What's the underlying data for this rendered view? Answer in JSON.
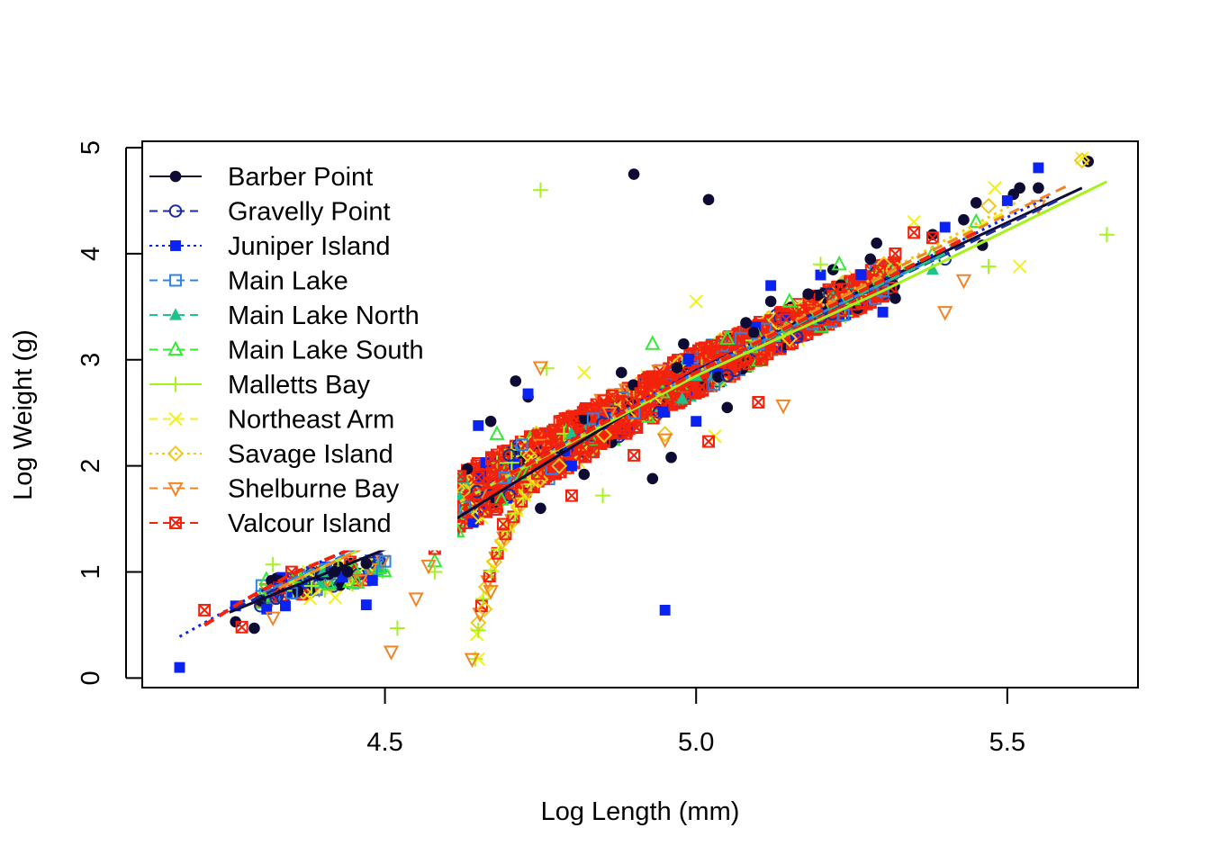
{
  "chart_data": {
    "type": "scatter",
    "title": "",
    "xlabel": "Log Length (mm)",
    "ylabel": "Log Weight (g)",
    "xlim": [
      4.11,
      5.71
    ],
    "ylim": [
      -0.09,
      5.06
    ],
    "x_ticks": [
      4.5,
      5.0,
      5.5
    ],
    "x_tick_labels": [
      "4.5",
      "5.0",
      "5.5"
    ],
    "y_ticks": [
      0,
      1,
      2,
      3,
      4,
      5
    ],
    "y_tick_labels": [
      "0",
      "1",
      "2",
      "3",
      "4",
      "5"
    ],
    "grid": false,
    "legend_position": "top-left",
    "series": [
      {
        "name": "Barber Point",
        "color": "#0d0b33",
        "marker": "filled-circle",
        "line_style": "solid",
        "fit": [
          [
            4.25,
            0.62
          ],
          [
            4.6,
            1.45
          ],
          [
            5.0,
            2.9
          ],
          [
            5.3,
            3.75
          ],
          [
            5.62,
            4.62
          ]
        ],
        "points": [
          [
            4.26,
            0.53
          ],
          [
            4.29,
            0.47
          ],
          [
            4.3,
            0.73
          ],
          [
            4.33,
            0.92
          ],
          [
            4.36,
            0.82
          ],
          [
            4.41,
            0.98
          ],
          [
            4.47,
            1.08
          ],
          [
            4.67,
            2.42
          ],
          [
            4.71,
            2.8
          ],
          [
            4.73,
            2.65
          ],
          [
            4.75,
            1.6
          ],
          [
            4.82,
            1.92
          ],
          [
            4.88,
            2.88
          ],
          [
            4.9,
            4.75
          ],
          [
            4.93,
            1.88
          ],
          [
            4.96,
            2.08
          ],
          [
            4.98,
            3.15
          ],
          [
            5.02,
            4.51
          ],
          [
            5.05,
            2.55
          ],
          [
            5.08,
            3.35
          ],
          [
            5.12,
            3.55
          ],
          [
            5.18,
            3.62
          ],
          [
            5.22,
            3.85
          ],
          [
            5.28,
            3.95
          ],
          [
            5.29,
            4.1
          ],
          [
            5.32,
            3.58
          ],
          [
            5.38,
            4.18
          ],
          [
            5.43,
            4.32
          ],
          [
            5.45,
            4.48
          ],
          [
            5.46,
            4.08
          ],
          [
            5.51,
            4.56
          ],
          [
            5.52,
            4.62
          ],
          [
            5.55,
            4.62
          ],
          [
            5.63,
            4.87
          ]
        ]
      },
      {
        "name": "Gravelly Point",
        "color": "#1a2d9b",
        "marker": "open-circle",
        "line_style": "dashed",
        "fit": [
          [
            4.26,
            0.66
          ],
          [
            4.6,
            1.6
          ],
          [
            5.0,
            2.88
          ],
          [
            5.35,
            3.85
          ],
          [
            5.58,
            4.5
          ]
        ],
        "points": [
          [
            4.3,
            0.68
          ],
          [
            4.4,
            1.0
          ],
          [
            4.7,
            2.1
          ],
          [
            4.85,
            2.4
          ],
          [
            5.05,
            2.85
          ],
          [
            5.2,
            3.4
          ],
          [
            5.4,
            3.95
          ]
        ]
      },
      {
        "name": "Juniper Island",
        "color": "#0b23f0",
        "marker": "filled-square",
        "line_style": "dotted",
        "fit": [
          [
            4.17,
            0.39
          ],
          [
            4.35,
            0.98
          ],
          [
            4.6,
            1.6
          ],
          [
            5.0,
            2.9
          ],
          [
            5.35,
            3.9
          ],
          [
            5.57,
            4.55
          ]
        ],
        "points": [
          [
            4.17,
            0.1
          ],
          [
            4.26,
            0.68
          ],
          [
            4.31,
            0.65
          ],
          [
            4.34,
            0.68
          ],
          [
            4.47,
            0.69
          ],
          [
            4.48,
            0.92
          ],
          [
            4.65,
            2.38
          ],
          [
            4.73,
            2.68
          ],
          [
            4.8,
            2.0
          ],
          [
            4.95,
            0.64
          ],
          [
            5.0,
            2.42
          ],
          [
            5.12,
            3.7
          ],
          [
            5.2,
            3.8
          ],
          [
            5.3,
            3.45
          ],
          [
            5.4,
            4.25
          ],
          [
            5.5,
            4.5
          ],
          [
            5.55,
            4.81
          ]
        ]
      },
      {
        "name": "Main Lake",
        "color": "#2d84e8",
        "marker": "open-square",
        "line_style": "dashed",
        "fit": [
          [
            4.32,
            0.85
          ],
          [
            4.6,
            1.6
          ],
          [
            5.0,
            2.88
          ],
          [
            5.4,
            4.0
          ]
        ],
        "points": [
          [
            4.35,
            0.8
          ],
          [
            4.5,
            1.1
          ],
          [
            4.72,
            2.2
          ],
          [
            4.9,
            2.5
          ],
          [
            5.1,
            3.15
          ],
          [
            5.3,
            3.65
          ]
        ]
      },
      {
        "name": "Main Lake North",
        "color": "#1ec28a",
        "marker": "filled-triangle",
        "line_style": "dashed",
        "fit": [
          [
            4.33,
            0.85
          ],
          [
            4.6,
            1.6
          ],
          [
            5.0,
            2.88
          ],
          [
            5.4,
            4.0
          ]
        ],
        "points": [
          [
            4.4,
            1.0
          ],
          [
            4.62,
            1.7
          ],
          [
            4.8,
            2.3
          ],
          [
            5.0,
            2.85
          ],
          [
            5.22,
            3.6
          ],
          [
            5.38,
            3.85
          ]
        ]
      },
      {
        "name": "Main Lake South",
        "color": "#33ea33",
        "marker": "open-triangle",
        "line_style": "dashed",
        "fit": [
          [
            4.33,
            0.85
          ],
          [
            4.6,
            1.6
          ],
          [
            5.0,
            2.88
          ],
          [
            5.45,
            4.2
          ]
        ],
        "points": [
          [
            4.36,
            0.95
          ],
          [
            4.58,
            1.1
          ],
          [
            4.68,
            2.3
          ],
          [
            4.93,
            3.15
          ],
          [
            5.05,
            3.2
          ],
          [
            5.15,
            3.55
          ],
          [
            5.23,
            3.9
          ],
          [
            5.38,
            4.0
          ],
          [
            5.45,
            4.3
          ]
        ]
      },
      {
        "name": "Malletts Bay",
        "color": "#a6f21b",
        "marker": "plus",
        "line_style": "solid",
        "fit": [
          [
            4.33,
            0.85
          ],
          [
            4.6,
            1.6
          ],
          [
            5.0,
            2.85
          ],
          [
            5.3,
            3.65
          ],
          [
            5.66,
            4.68
          ]
        ],
        "points": [
          [
            4.32,
            1.07
          ],
          [
            4.52,
            0.47
          ],
          [
            4.58,
            1.0
          ],
          [
            4.65,
            0.45
          ],
          [
            4.75,
            4.6
          ],
          [
            4.76,
            2.92
          ],
          [
            4.85,
            1.72
          ],
          [
            5.2,
            3.9
          ],
          [
            5.47,
            3.88
          ],
          [
            5.66,
            4.18
          ]
        ]
      },
      {
        "name": "Northeast Arm",
        "color": "#f0f21a",
        "marker": "cross",
        "line_style": "dashed",
        "fit": [
          [
            4.33,
            0.85
          ],
          [
            4.6,
            1.6
          ],
          [
            5.0,
            2.88
          ],
          [
            5.5,
            4.4
          ]
        ],
        "points": [
          [
            4.38,
            0.75
          ],
          [
            4.42,
            0.76
          ],
          [
            4.65,
            0.18
          ],
          [
            4.82,
            2.88
          ],
          [
            5.0,
            3.55
          ],
          [
            5.03,
            2.28
          ],
          [
            5.35,
            4.3
          ],
          [
            5.48,
            4.62
          ],
          [
            5.52,
            3.88
          ],
          [
            5.62,
            4.9
          ]
        ]
      },
      {
        "name": "Savage Island",
        "color": "#f2c81a",
        "marker": "open-diamond",
        "line_style": "dotted",
        "fit": [
          [
            4.33,
            0.85
          ],
          [
            4.6,
            1.6
          ],
          [
            5.0,
            2.88
          ],
          [
            5.52,
            4.5
          ]
        ],
        "points": [
          [
            4.66,
            0.65
          ],
          [
            4.78,
            2.0
          ],
          [
            4.95,
            2.3
          ],
          [
            5.15,
            3.2
          ],
          [
            5.47,
            4.45
          ],
          [
            5.62,
            4.88
          ]
        ]
      },
      {
        "name": "Shelburne Bay",
        "color": "#f38424",
        "marker": "open-triangle-down",
        "line_style": "dashed",
        "fit": [
          [
            4.33,
            0.85
          ],
          [
            4.6,
            1.6
          ],
          [
            5.0,
            2.88
          ],
          [
            5.35,
            3.95
          ],
          [
            5.6,
            4.65
          ]
        ],
        "points": [
          [
            4.32,
            0.57
          ],
          [
            4.46,
            0.92
          ],
          [
            4.51,
            0.25
          ],
          [
            4.55,
            0.75
          ],
          [
            4.57,
            1.06
          ],
          [
            4.64,
            0.18
          ],
          [
            4.67,
            0.82
          ],
          [
            4.75,
            2.93
          ],
          [
            4.95,
            2.25
          ],
          [
            5.14,
            2.57
          ],
          [
            5.4,
            3.45
          ],
          [
            5.43,
            3.75
          ],
          [
            5.55,
            4.45
          ]
        ]
      },
      {
        "name": "Valcour Island",
        "color": "#f2220c",
        "marker": "boxed-cross",
        "line_style": "dashed",
        "fit": [
          [
            4.21,
            0.5
          ],
          [
            4.27,
            0.72
          ],
          [
            4.35,
            0.98
          ],
          [
            4.6,
            1.6
          ],
          [
            5.0,
            2.88
          ],
          [
            5.3,
            3.75
          ],
          [
            5.45,
            4.2
          ]
        ],
        "points": [
          [
            4.21,
            0.64
          ],
          [
            4.27,
            0.48
          ],
          [
            4.33,
            0.85
          ],
          [
            4.35,
            1.0
          ],
          [
            4.58,
            1.22
          ],
          [
            4.6,
            2.12
          ],
          [
            4.69,
            1.45
          ],
          [
            4.8,
            1.72
          ],
          [
            4.9,
            2.1
          ],
          [
            5.02,
            2.23
          ],
          [
            5.1,
            2.6
          ],
          [
            5.22,
            3.6
          ],
          [
            5.32,
            4.0
          ],
          [
            5.35,
            4.2
          ],
          [
            5.38,
            4.15
          ]
        ]
      }
    ]
  }
}
